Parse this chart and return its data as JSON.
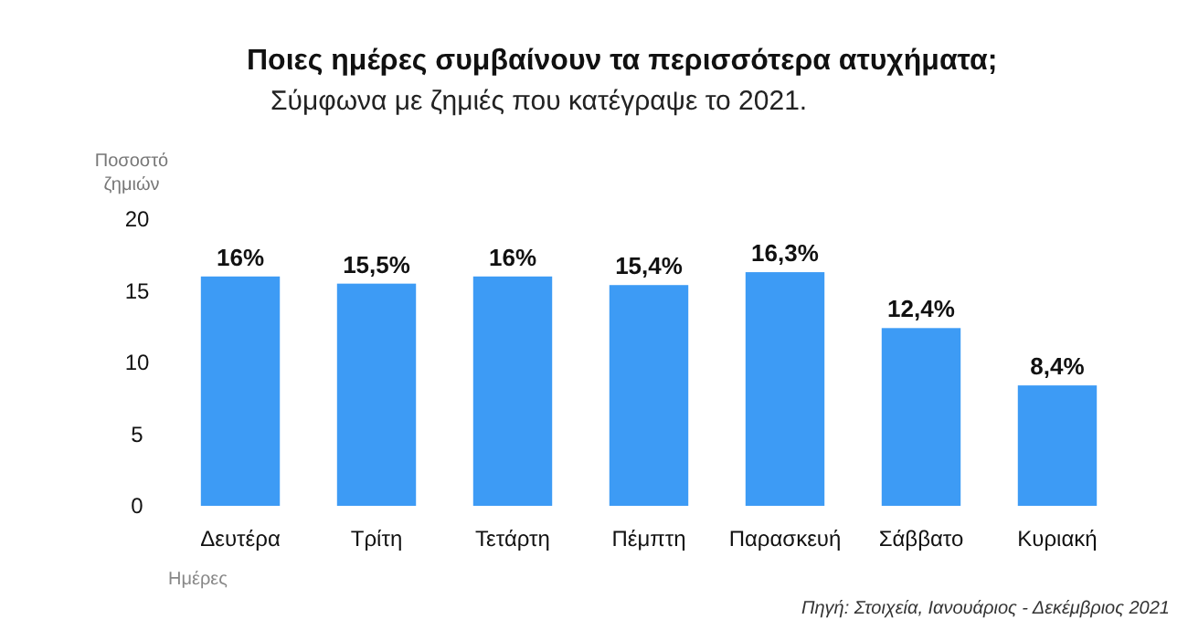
{
  "chart_data": {
    "type": "bar",
    "title": "Ποιες ημέρες συμβαίνουν τα περισσότερα ατυχήματα;",
    "subtitle": "Σύμφωνα με ζημιές που κατέγραψε το 2021.",
    "ylabel": "Ποσοστό ζημιών",
    "xlabel": "Ημέρες",
    "categories": [
      "Δευτέρα",
      "Τρίτη",
      "Τετάρτη",
      "Πέμπτη",
      "Παρασκευή",
      "Σάββατο",
      "Κυριακή"
    ],
    "values": [
      16,
      15.5,
      16,
      15.4,
      16.3,
      12.4,
      8.4
    ],
    "value_labels": [
      "16%",
      "15,5%",
      "16%",
      "15,4%",
      "16,3%",
      "12,4%",
      "8,4%"
    ],
    "color": "#3d9bf5",
    "ylim": [
      0,
      20
    ],
    "yticks": [
      0,
      5,
      10,
      15,
      20
    ],
    "annotations": [
      "Πηγή: Στοιχεία, Ιανουάριος - Δεκέμβριος 2021"
    ]
  }
}
